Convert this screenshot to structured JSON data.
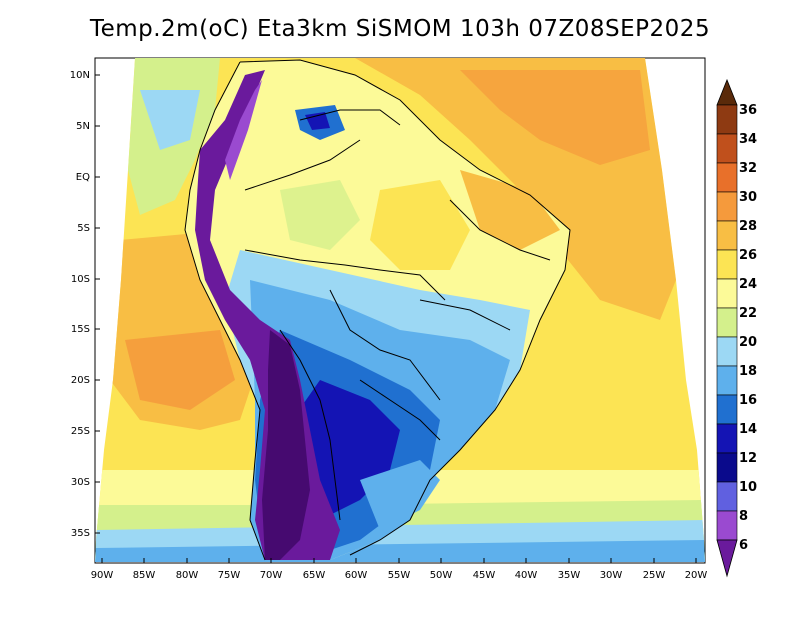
{
  "title": "Temp.2m(oC) Eta3km SiSMOM 103h 07Z08SEP2025",
  "lat_labels": [
    "10N",
    "5N",
    "EQ",
    "5S",
    "10S",
    "15S",
    "20S",
    "25S",
    "30S",
    "35S"
  ],
  "lon_labels": [
    "90W",
    "85W",
    "80W",
    "75W",
    "70W",
    "65W",
    "60W",
    "55W",
    "50W",
    "45W",
    "40W",
    "35W",
    "30W",
    "25W",
    "20W"
  ],
  "colorbar": {
    "labels": [
      "36",
      "34",
      "32",
      "30",
      "28",
      "26",
      "24",
      "22",
      "20",
      "18",
      "16",
      "14",
      "12",
      "10",
      "8",
      "6"
    ],
    "colors": [
      "#5a2a0a",
      "#8e3a12",
      "#c0501c",
      "#e8702a",
      "#f59a3c",
      "#f8be44",
      "#fce454",
      "#fcfa98",
      "#d4f08c",
      "#9cd8f4",
      "#5eb0ec",
      "#2070d0",
      "#1414b4",
      "#0a0a8c",
      "#6060e0",
      "#9a4ad0",
      "#6a1a9c",
      "#460a70"
    ]
  },
  "palette": {
    "ocean_warm": "#f59a3c",
    "ocean_mild": "#fce454",
    "interior": "#fcfa98",
    "cool": "#5eb0ec",
    "cold": "#1414b4",
    "andes": "#6a1a9c"
  }
}
